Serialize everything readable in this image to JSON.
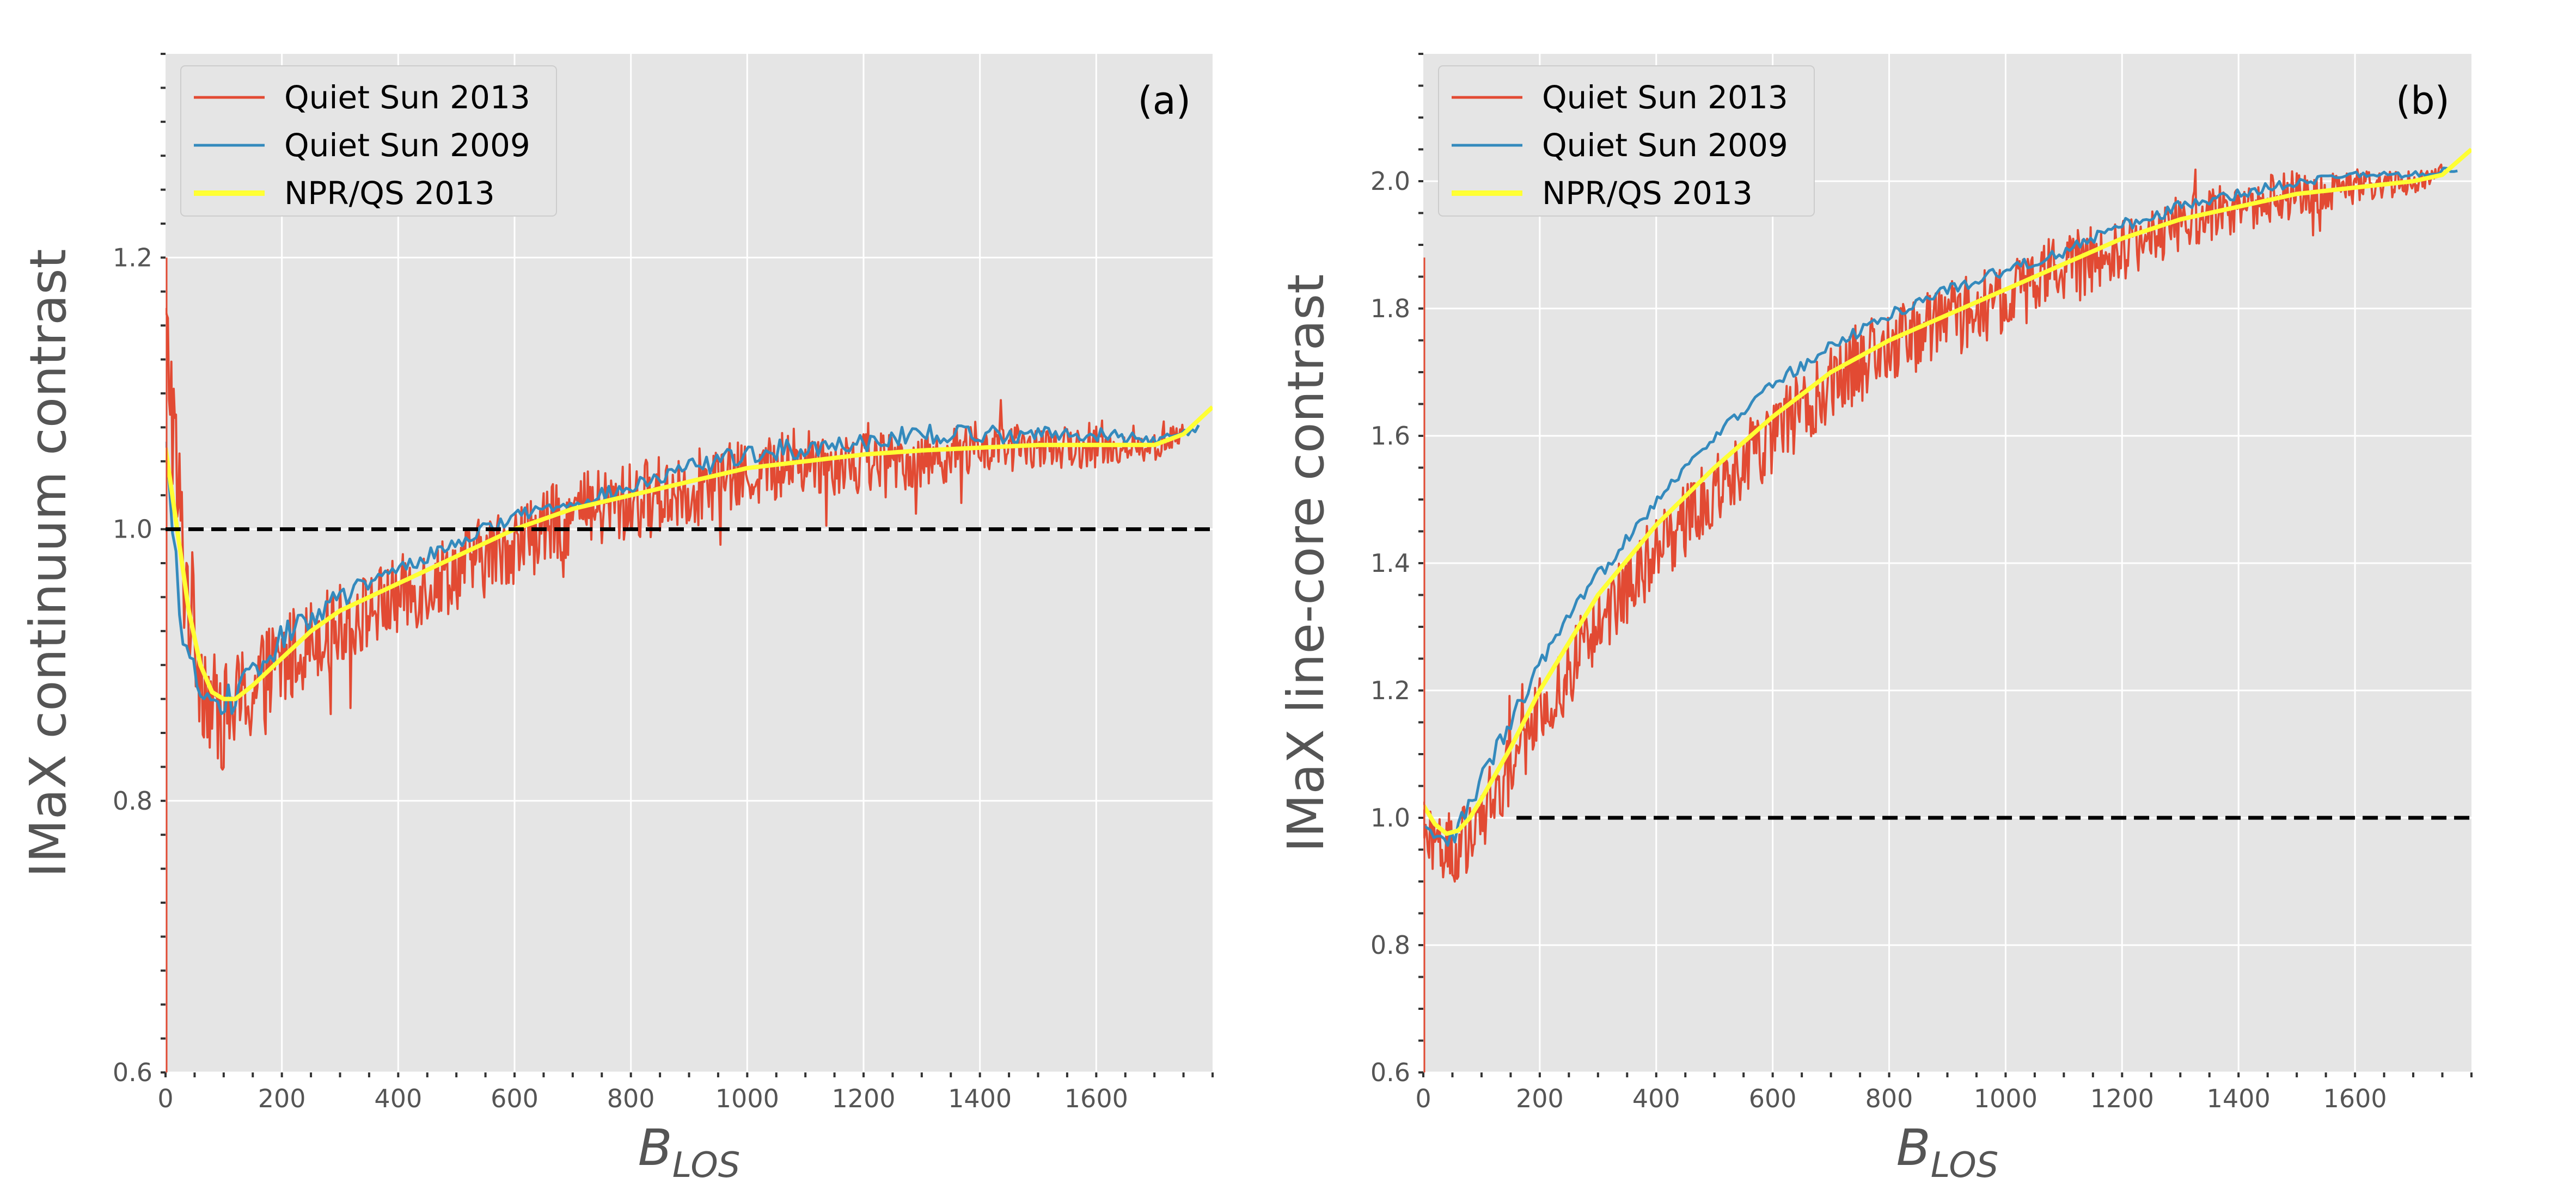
{
  "chart_data": [
    {
      "type": "line",
      "panel_label": "(a)",
      "xlabel": "B",
      "xlabel_sub": "LOS",
      "ylabel": "IMaX continuum contrast",
      "xlim": [
        0,
        1800
      ],
      "ylim": [
        0.6,
        1.35
      ],
      "xticks": [
        0,
        200,
        400,
        600,
        800,
        1000,
        1200,
        1400,
        1600
      ],
      "xtick_labels": [
        "0",
        "200",
        "400",
        "600",
        "800",
        "1000",
        "1200",
        "1400",
        "1600"
      ],
      "yticks": [
        0.6,
        0.8,
        1.0,
        1.2
      ],
      "ytick_labels": [
        "0.6",
        "0.8",
        "1.0",
        "1.2"
      ],
      "grid": true,
      "legend_location": "upper-left",
      "reference_line": 1.0,
      "series": [
        {
          "name": "Quiet Sun 2013",
          "color": "#e24a33",
          "x": [
            0,
            10,
            20,
            30,
            40,
            60,
            80,
            100,
            120,
            150,
            200,
            250,
            300,
            400,
            500,
            600,
            700,
            800,
            900,
            1000,
            1100,
            1200,
            1300,
            1400,
            1500,
            1600,
            1700,
            1750
          ],
          "y": [
            1.15,
            1.1,
            1.03,
            0.98,
            0.95,
            0.9,
            0.87,
            0.86,
            0.87,
            0.88,
            0.9,
            0.92,
            0.93,
            0.95,
            0.97,
            0.99,
            1.01,
            1.02,
            1.03,
            1.04,
            1.05,
            1.05,
            1.05,
            1.06,
            1.06,
            1.06,
            1.06,
            1.07
          ],
          "noise": [
            0.03,
            0.06,
            0.06,
            0.06,
            0.05,
            0.05,
            0.04,
            0.04,
            0.04,
            0.04,
            0.04,
            0.03,
            0.03,
            0.03,
            0.03,
            0.03,
            0.03,
            0.03,
            0.03,
            0.025,
            0.025,
            0.025,
            0.02,
            0.02,
            0.015,
            0.015,
            0.01,
            0.01
          ]
        },
        {
          "name": "Quiet Sun 2009",
          "color": "#348abd",
          "x": [
            0,
            20,
            40,
            60,
            80,
            100,
            120,
            150,
            200,
            300,
            400,
            500,
            600,
            700,
            800,
            900,
            1000,
            1100,
            1200,
            1300,
            1400,
            1500,
            1600,
            1700,
            1780
          ],
          "y": [
            1.06,
            0.96,
            0.9,
            0.88,
            0.87,
            0.87,
            0.88,
            0.89,
            0.92,
            0.95,
            0.97,
            0.99,
            1.01,
            1.02,
            1.03,
            1.045,
            1.055,
            1.06,
            1.065,
            1.07,
            1.07,
            1.07,
            1.07,
            1.065,
            1.075
          ],
          "noise": [
            0.01,
            0.015,
            0.015,
            0.015,
            0.015,
            0.015,
            0.012,
            0.012,
            0.01,
            0.008,
            0.006,
            0.005,
            0.005,
            0.005,
            0.006,
            0.007,
            0.008,
            0.008,
            0.008,
            0.007,
            0.007,
            0.006,
            0.005,
            0.004,
            0.003
          ]
        },
        {
          "name": "NPR/QS 2013",
          "color": "#ffff33",
          "x": [
            0,
            20,
            40,
            60,
            80,
            100,
            120,
            150,
            200,
            250,
            300,
            400,
            500,
            600,
            700,
            800,
            900,
            1000,
            1100,
            1200,
            1300,
            1400,
            1500,
            1600,
            1700,
            1750,
            1800
          ],
          "y": [
            1.06,
            1.0,
            0.94,
            0.9,
            0.88,
            0.875,
            0.875,
            0.885,
            0.905,
            0.925,
            0.94,
            0.96,
            0.98,
            1.0,
            1.015,
            1.025,
            1.035,
            1.045,
            1.05,
            1.055,
            1.058,
            1.06,
            1.062,
            1.062,
            1.062,
            1.07,
            1.09
          ]
        }
      ]
    },
    {
      "type": "line",
      "panel_label": "(b)",
      "xlabel": "B",
      "xlabel_sub": "LOS",
      "ylabel": "IMaX line-core contrast",
      "xlim": [
        0,
        1800
      ],
      "ylim": [
        0.6,
        2.2
      ],
      "xticks": [
        0,
        200,
        400,
        600,
        800,
        1000,
        1200,
        1400,
        1600
      ],
      "xtick_labels": [
        "0",
        "200",
        "400",
        "600",
        "800",
        "1000",
        "1200",
        "1400",
        "1600"
      ],
      "yticks": [
        0.6,
        0.8,
        1.0,
        1.2,
        1.4,
        1.6,
        1.8,
        2.0
      ],
      "ytick_labels": [
        "0.6",
        "0.8",
        "1.0",
        "1.2",
        "1.4",
        "1.6",
        "1.8",
        "2.0"
      ],
      "grid": true,
      "legend_location": "upper-left",
      "reference_line": 1.0,
      "reference_line_xmin": 160,
      "series": [
        {
          "name": "Quiet Sun 2013",
          "color": "#e24a33",
          "x": [
            0,
            20,
            40,
            60,
            80,
            100,
            150,
            200,
            300,
            400,
            500,
            600,
            700,
            800,
            900,
            1000,
            1100,
            1200,
            1300,
            1400,
            1500,
            1600,
            1700,
            1750
          ],
          "y": [
            1.0,
            0.97,
            0.95,
            0.95,
            0.97,
            1.0,
            1.08,
            1.16,
            1.3,
            1.42,
            1.52,
            1.6,
            1.68,
            1.74,
            1.78,
            1.82,
            1.86,
            1.89,
            1.93,
            1.96,
            1.98,
            1.99,
            2.0,
            2.02
          ],
          "noise": [
            0.05,
            0.06,
            0.06,
            0.06,
            0.06,
            0.06,
            0.06,
            0.06,
            0.06,
            0.06,
            0.06,
            0.06,
            0.06,
            0.06,
            0.06,
            0.06,
            0.06,
            0.05,
            0.05,
            0.04,
            0.04,
            0.03,
            0.02,
            0.015
          ]
        },
        {
          "name": "Quiet Sun 2009",
          "color": "#348abd",
          "x": [
            0,
            20,
            40,
            60,
            80,
            100,
            150,
            200,
            300,
            400,
            500,
            600,
            700,
            800,
            900,
            1000,
            1100,
            1200,
            1300,
            1400,
            1500,
            1600,
            1700,
            1780
          ],
          "y": [
            0.98,
            0.96,
            0.96,
            0.98,
            1.02,
            1.06,
            1.15,
            1.24,
            1.38,
            1.5,
            1.6,
            1.68,
            1.74,
            1.79,
            1.83,
            1.86,
            1.89,
            1.93,
            1.96,
            1.98,
            2.0,
            2.01,
            2.01,
            2.02
          ],
          "noise": [
            0.015,
            0.02,
            0.02,
            0.02,
            0.02,
            0.02,
            0.015,
            0.015,
            0.012,
            0.01,
            0.01,
            0.01,
            0.01,
            0.01,
            0.01,
            0.01,
            0.01,
            0.01,
            0.01,
            0.008,
            0.008,
            0.006,
            0.005,
            0.004
          ]
        },
        {
          "name": "NPR/QS 2013",
          "color": "#ffff33",
          "x": [
            0,
            20,
            40,
            60,
            80,
            100,
            150,
            200,
            300,
            400,
            500,
            600,
            700,
            800,
            900,
            1000,
            1100,
            1200,
            1300,
            1400,
            1500,
            1600,
            1700,
            1750,
            1800
          ],
          "y": [
            1.02,
            0.99,
            0.975,
            0.98,
            1.0,
            1.03,
            1.11,
            1.2,
            1.35,
            1.46,
            1.55,
            1.63,
            1.7,
            1.75,
            1.79,
            1.83,
            1.87,
            1.91,
            1.94,
            1.96,
            1.98,
            1.99,
            2.0,
            2.01,
            2.05
          ]
        }
      ]
    }
  ]
}
